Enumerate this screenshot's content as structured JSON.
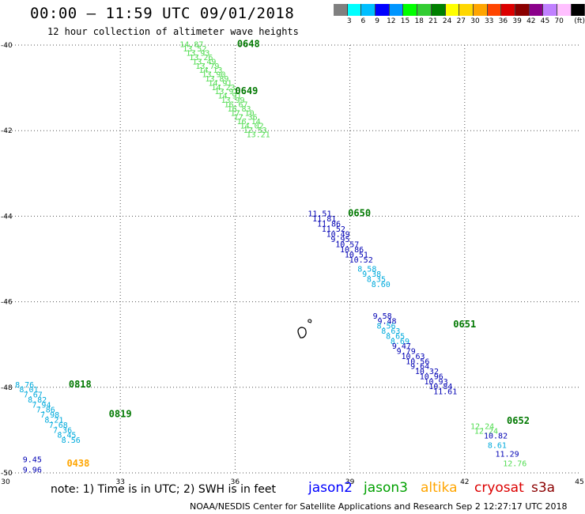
{
  "title": "00:00 – 11:59 UTC 09/01/2018",
  "subtitle": "12 hour collection of altimeter wave heights",
  "legend": {
    "unit": "(ft)",
    "colors": [
      "#808080",
      "#00ffff",
      "#00bfff",
      "#0000ff",
      "#0096ff",
      "#00ff00",
      "#32cd32",
      "#008000",
      "#ffff00",
      "#ffd700",
      "#ffa500",
      "#ff4500",
      "#dc0000",
      "#8b0000",
      "#8b008b",
      "#c080ff",
      "#ffc0ff",
      "#000000"
    ],
    "labels": [
      "3",
      "6",
      "9",
      "12",
      "15",
      "18",
      "21",
      "24",
      "27",
      "30",
      "33",
      "36",
      "39",
      "42",
      "45",
      "70"
    ]
  },
  "axes": {
    "lon_labels": [
      "30",
      "33",
      "36",
      "39",
      "42",
      "45"
    ],
    "lat_labels": [
      "-40",
      "-42",
      "-44",
      "-46",
      "-48",
      "-50"
    ]
  },
  "swh_colors": {
    "blue": "#0000b4",
    "cyan": "#00aadc",
    "lightgreen": "#50dc50",
    "green": "#00a000",
    "darkgreen": "#007800"
  },
  "time_labels": [
    {
      "text": "0648",
      "lon": 36.05,
      "lat": -40.05,
      "color": "darkgreen"
    },
    {
      "text": "0649",
      "lon": 36.0,
      "lat": -41.15,
      "color": "darkgreen"
    },
    {
      "text": "0650",
      "lon": 38.95,
      "lat": -44.0,
      "color": "darkgreen"
    },
    {
      "text": "0651",
      "lon": 41.7,
      "lat": -46.6,
      "color": "darkgreen"
    },
    {
      "text": "0652",
      "lon": 43.1,
      "lat": -48.85,
      "color": "darkgreen"
    },
    {
      "text": "0818",
      "lon": 31.65,
      "lat": -48.0,
      "color": "darkgreen"
    },
    {
      "text": "0819",
      "lon": 32.7,
      "lat": -48.7,
      "color": "darkgreen"
    },
    {
      "text": "0438",
      "lon": 31.6,
      "lat": -49.85,
      "color": "orange"
    }
  ],
  "tracks": [
    {
      "start": [
        34.55,
        -40.05
      ],
      "step": [
        0.083,
        -0.1
      ],
      "color": "lightgreen",
      "values": [
        "14.87",
        "13.52",
        "13.93",
        "13.26",
        "13.49",
        "13.79",
        "14.13",
        "13.90",
        "13.89",
        "14.91",
        "14.23",
        "13.91",
        "14.91",
        "13.99",
        "16.67",
        "16.83",
        "17.10",
        "17.36",
        "16.14",
        "14.02",
        "12.53",
        "13.21"
      ]
    },
    {
      "start": [
        37.9,
        -44.0
      ],
      "step": [
        0.12,
        -0.12
      ],
      "color": "blue",
      "values": [
        "11.51",
        "11.81",
        "11.86",
        "11.52",
        "10.49",
        "9.95",
        "10.57",
        "10.86",
        "10.51",
        "10.52"
      ]
    },
    {
      "start": [
        39.2,
        -45.3
      ],
      "step": [
        0.12,
        -0.118
      ],
      "color": "cyan",
      "values": [
        "8.58",
        "9.38",
        "8.35",
        "8.60"
      ]
    },
    {
      "start": [
        39.6,
        -46.4
      ],
      "step": [
        0.12,
        -0.118
      ],
      "color": "blue",
      "values": [
        "9.58",
        "9.48"
      ]
    },
    {
      "start": [
        39.7,
        -46.63
      ],
      "step": [
        0.12,
        -0.118
      ],
      "color": "cyan",
      "values": [
        "8.56",
        "8.63",
        "8.65",
        "8.69"
      ]
    },
    {
      "start": [
        40.1,
        -47.1
      ],
      "step": [
        0.12,
        -0.118
      ],
      "color": "blue",
      "values": [
        "9.47",
        "9.79",
        "10.63",
        "10.56",
        "9.64",
        "10.32",
        "10.96",
        "10.93",
        "10.84",
        "11.61"
      ]
    },
    {
      "start": [
        42.15,
        -48.97
      ],
      "step": [
        0.1,
        -0.118
      ],
      "color": "lightgreen",
      "values": [
        "12.24",
        "12.24"
      ]
    },
    {
      "start": [
        42.5,
        -49.2
      ],
      "step": [
        0.12,
        -0.118
      ],
      "color": "blue",
      "values": [
        "10.82"
      ]
    },
    {
      "start": [
        42.6,
        -49.42
      ],
      "step": [
        0.12,
        -0.118
      ],
      "color": "cyan",
      "values": [
        "8.61"
      ]
    },
    {
      "start": [
        42.8,
        -49.62
      ],
      "step": [
        0.12,
        -0.118
      ],
      "color": "blue",
      "values": [
        "11.29"
      ]
    },
    {
      "start": [
        43.0,
        -49.84
      ],
      "step": [
        0.12,
        -0.118
      ],
      "color": "lightgreen",
      "values": [
        "12.76"
      ]
    },
    {
      "start": [
        30.25,
        -48.0
      ],
      "step": [
        0.11,
        -0.118
      ],
      "color": "cyan",
      "values": [
        "8.76",
        "8.01",
        "7.67",
        "8.82",
        "7.94",
        "7.86",
        "7.98",
        "8.21",
        "7.68",
        "7.36",
        "8.45",
        "8.56"
      ]
    },
    {
      "start": [
        30.45,
        -49.75
      ],
      "step": [
        0.0,
        -0.24
      ],
      "color": "blue",
      "values": [
        "9.45",
        "9.96"
      ]
    }
  ],
  "note": "note: 1) Time is in UTC; 2) SWH is in feet",
  "satellites": [
    {
      "name": "jason2",
      "color": "#0000ff"
    },
    {
      "name": "jason3",
      "color": "#00a000"
    },
    {
      "name": "altika",
      "color": "#ffa500"
    },
    {
      "name": "cryosat",
      "color": "#dc0000"
    },
    {
      "name": "s3a",
      "color": "#8b0000"
    }
  ],
  "credit": "NOAA/NESDIS Center for Satellite Applications and Research   Sep  2 12:27:17 UTC 2018"
}
